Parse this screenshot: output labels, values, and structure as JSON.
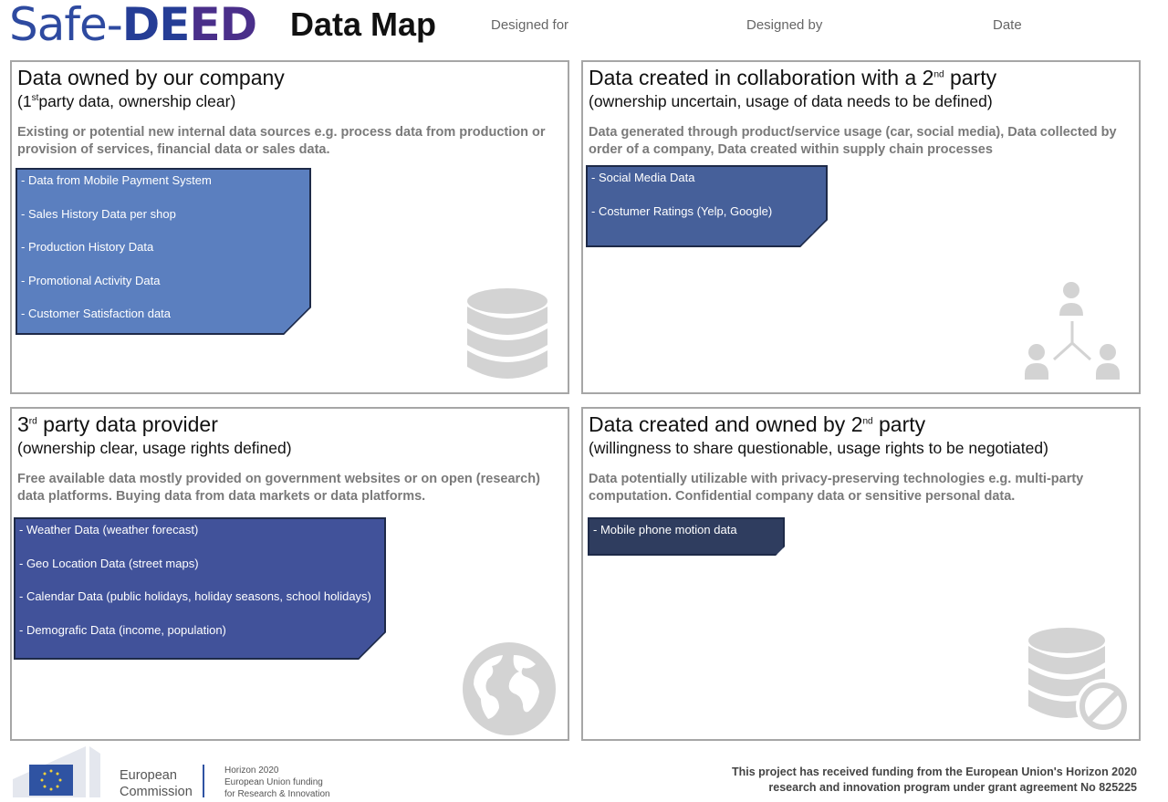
{
  "header": {
    "logo": {
      "part1": "Safe-",
      "part2": "DE",
      "part3": "ED"
    },
    "title": "Data Map",
    "designed_for_label": "Designed for",
    "designed_by_label": "Designed by",
    "date_label": "Date"
  },
  "quadrants": [
    {
      "title": "Data owned by our company",
      "subtitle_pre": "(1",
      "subtitle_sup": "st",
      "subtitle_post": "party data, ownership clear)",
      "description": "Existing or potential new internal data sources e.g. process data from production or provision of services, financial data or sales  data.",
      "note_color": "#5b7fbf",
      "items": [
        "- Data from Mobile Payment System",
        "- Sales History Data per shop",
        "- Production History Data",
        "- Promotional Activity Data",
        "- Customer Satisfaction data"
      ],
      "icon": "database-icon"
    },
    {
      "title_pre": "Data created in collaboration with a 2",
      "title_sup": "nd",
      "title_post": " party",
      "subtitle": "(ownership uncertain, usage of data needs to be defined)",
      "description": "Data generated through product/service usage (car, social media), Data collected by order of a company, Data created within supply chain processes",
      "note_color": "#46609a",
      "items": [
        "- Social Media Data",
        "- Costumer Ratings (Yelp, Google)"
      ],
      "icon": "network-people-icon"
    },
    {
      "title_pre": "3",
      "title_sup": "rd",
      "title_post": " party data provider",
      "subtitle": "(ownership clear, usage rights defined)",
      "description": "Free available data mostly provided on government websites or on open (research) data platforms. Buying data from data markets or data platforms.",
      "note_color": "#41529a",
      "items": [
        "- Weather Data (weather forecast)",
        "- Geo Location Data (street maps)",
        "- Calendar Data (public holidays, holiday seasons, school holidays)",
        "- Demografic Data (income, population)"
      ],
      "icon": "globe-icon"
    },
    {
      "title_pre": "Data created and owned by 2",
      "title_sup": "nd",
      "title_post": " party",
      "subtitle": "(willingness to share questionable, usage rights to be negotiated)",
      "description": "Data potentially utilizable with privacy-preserving technologies e.g. multi-party computation. Confidential company data or sensitive personal data.",
      "note_color": "#2f3d5f",
      "items": [
        "- Mobile phone motion data"
      ],
      "icon": "database-blocked-icon"
    }
  ],
  "footer": {
    "ec_line1": "European",
    "ec_line2": "Commission",
    "horizon_line1": "Horizon 2020",
    "horizon_line2": "European Union funding",
    "horizon_line3": "for Research & Innovation",
    "funding_line1": "This project has received funding from the European Union's Horizon 2020",
    "funding_line2": "research and innovation program under grant agreement No 825225"
  }
}
